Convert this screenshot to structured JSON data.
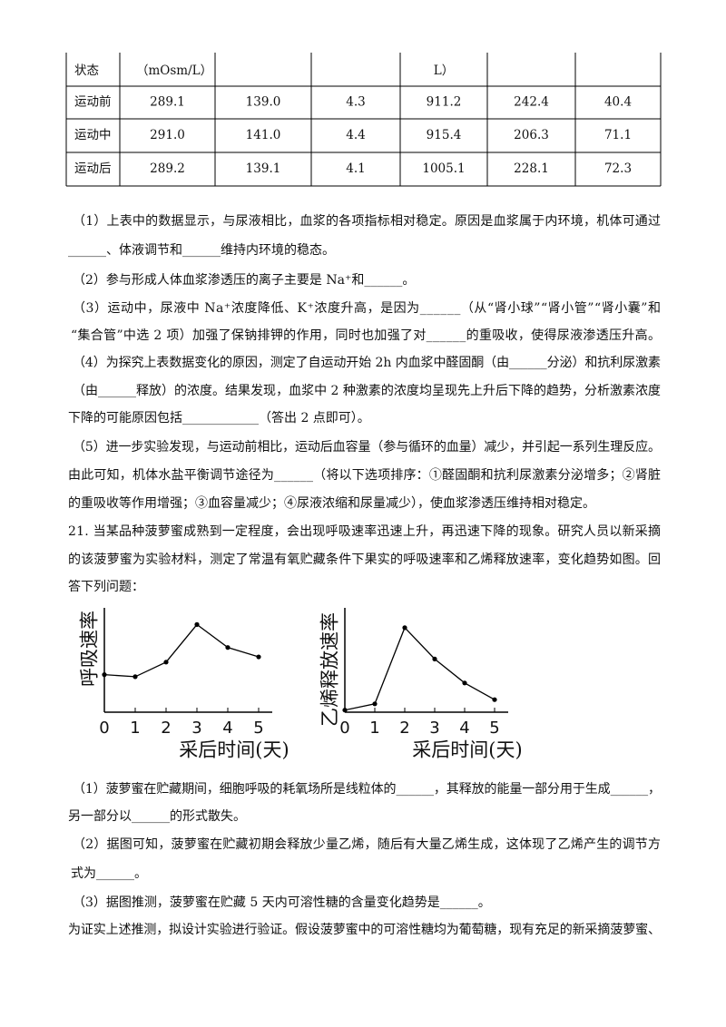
{
  "table": {
    "rows": [
      [
        "状态",
        "（mOsm/L）",
        null,
        null,
        "L）",
        null,
        null
      ],
      [
        "运动前",
        "289.1",
        "139.0",
        "4.3",
        "911.2",
        "242.4",
        "40.4"
      ],
      [
        "运动中",
        "291.0",
        "141.0",
        "4.4",
        "915.4",
        "206.3",
        "71.1"
      ],
      [
        "运动后",
        "289.2",
        "139.1",
        "4.1",
        "1005.1",
        "228.1",
        "72.3"
      ]
    ]
  },
  "paragraphs": [
    "（1）上表中的数据显示，与尿液相比，血浆的各项指标相对稳定。原因是血浆属于内环境，机体可通过",
    "______、体液调节和______维持内环境的稳态。",
    "（2）参与形成人体血浆渗透压的离子主要是 Na⁺和______。",
    "（3）运动中，尿液中 Na⁺浓度降低、K⁺浓度升高，是因为______（从“肾小球”“肾小管”“肾小囊”和",
    "“集合管”中选 2 项）加强了保钠排钾的作用，同时也加强了对______的重吸收，使得尿液渗透压升高。",
    "（4）为探究上表数据变化的原因，测定了自运动开始 2h 内血浆中醛固酮（由______分泌）和抗利尿激素",
    "（由______释放）的浓度。结果发现，血浆中 2 种激素的浓度均呈现先上升后下降的趋势，分析激素浓度",
    "下降的可能原因包括____________（答出 2 点即可）。",
    "（5）进一步实验发现，与运动前相比，运动后血容量（参与循环的血量）减少，并引起一系列生理反应。",
    "由此可知，机体水盐平衡调节途径为______（将以下选项排序：①醛固酮和抗利尿激素分泌增多；②肾脏",
    "的重吸收等作用增强；③血容量减少；④尿液浓缩和尿量减少），使血浆渗透压维持相对稳定。",
    "21. 当某品种菠萝蜜成熟到一定程度，会出现呼吸速率迅速上升，再迅速下降的现象。研究人员以新采摘",
    "的该菠萝蜜为实验材料，测定了常温有氧贮藏条件下果实的呼吸速率和乙烯释放速率，变化趋势如图。回",
    "答下列问题：",
    "（1）菠萝蜜在贮藏期间，细胞呼吸的耗氧场所是线粒体的______，其释放的能量一部分用于生成______，",
    "另一部分以______的形式散失。",
    "（2）据图可知，菠萝蜜在贮藏初期会释放少量乙烯，随后有大量乙烯生成，这体现了乙烯产生的调节方",
    "式为______。",
    "（3）据图推测，菠萝蜜在贮藏 5 天内可溶性糖的含量变化趋势是______。",
    "为证实上述推测，拟设计实验进行验证。假设菠萝蜜中的可溶性糖均为葡萄糖，现有充足的新采摘菠萝蜜、"
  ],
  "chart_data": [
    {
      "type": "line",
      "y_label": "呼吸速率",
      "x_label": "采后时间(天)",
      "x": [
        0,
        1,
        2,
        3,
        4,
        5
      ],
      "values": [
        36,
        34,
        48,
        84,
        62,
        53
      ],
      "xlim": [
        0,
        5
      ],
      "xticks": [
        0,
        1,
        2,
        3,
        4,
        5
      ],
      "ylim": [
        0,
        100
      ],
      "color": "#000000"
    },
    {
      "type": "line",
      "y_label": "乙烯释放速率",
      "x_label": "采后时间(天)",
      "x": [
        0,
        1,
        2,
        3,
        4,
        5
      ],
      "values": [
        2,
        8,
        81,
        51,
        28,
        12
      ],
      "xlim": [
        0,
        5
      ],
      "xticks": [
        0,
        1,
        2,
        3,
        4,
        5
      ],
      "ylim": [
        0,
        100
      ],
      "color": "#000000"
    }
  ]
}
